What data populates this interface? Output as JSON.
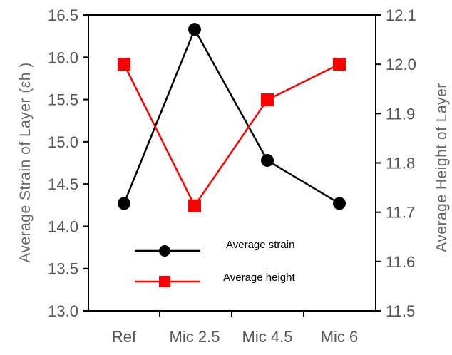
{
  "chart_data": {
    "type": "line",
    "categories": [
      "Ref",
      "Mic 2.5",
      "Mic 4.5",
      "Mic 6"
    ],
    "series": [
      {
        "name": "Average strain",
        "axis": "left",
        "color": "#000000",
        "marker": "circle",
        "values": [
          14.27,
          16.33,
          14.78,
          14.27
        ]
      },
      {
        "name": "Average height",
        "axis": "right",
        "color": "#ff0000",
        "marker": "square",
        "values": [
          12.0,
          11.713,
          11.928,
          12.0
        ]
      }
    ],
    "ylabel_left": "Average Strain of Layer (εh )",
    "ylabel_right": "Average Height of Layer",
    "ylim_left": [
      13.0,
      16.5
    ],
    "yticks_left": [
      "13.0",
      "13.5",
      "14.0",
      "14.5",
      "15.0",
      "15.5",
      "16.0",
      "16.5"
    ],
    "ylim_right": [
      11.5,
      12.1
    ],
    "yticks_right": [
      "11.5",
      "11.6",
      "11.7",
      "11.8",
      "11.9",
      "12.0",
      "12.1"
    ],
    "grid": false,
    "legend_position": "bottom-center-inside"
  }
}
